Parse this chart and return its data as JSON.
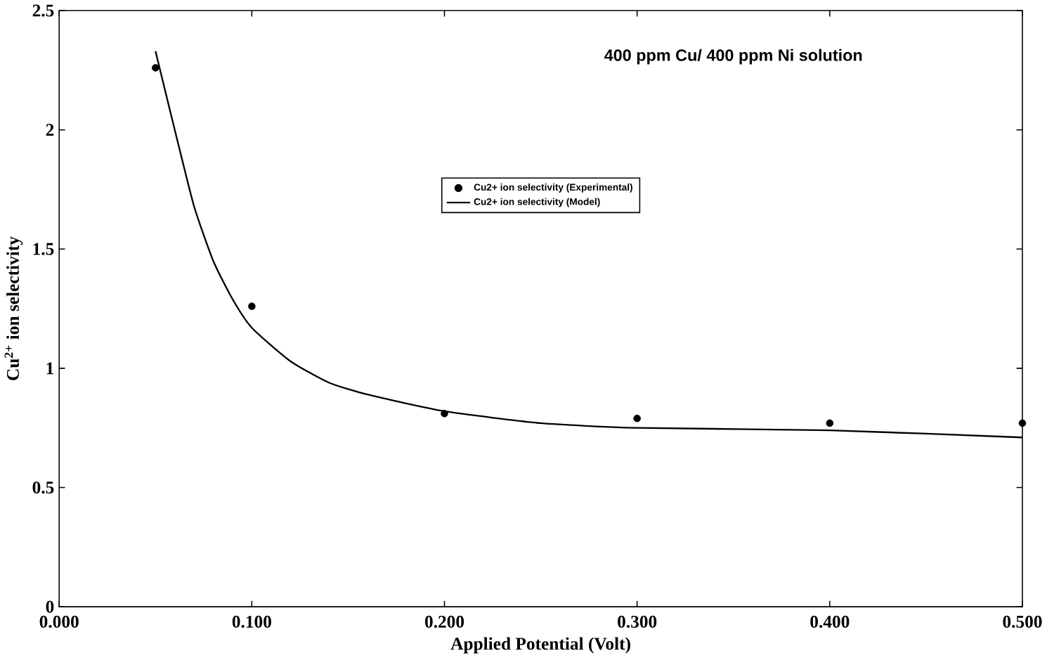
{
  "chart_data": {
    "type": "scatter",
    "title": "400 ppm Cu/ 400 ppm Ni solution",
    "xlabel": "Applied Potential (Volt)",
    "ylabel": "Cu$^{2+}$ ion selectivity",
    "series": [
      {
        "name": "Cu2+ ion selectivity (Experimental)",
        "color": "#000000",
        "marker": "circle",
        "x": [
          0.05,
          0.1,
          0.2,
          0.3,
          0.4,
          0.5
        ],
        "values": [
          2.26,
          1.26,
          0.81,
          0.79,
          0.77,
          0.77
        ]
      },
      {
        "name": "Cu2+ ion selectivity (Model)",
        "type": "line",
        "color": "#000000",
        "marker": "none",
        "line_style": "solid",
        "x": [
          0.05,
          0.06,
          0.07,
          0.08,
          0.09,
          0.1,
          0.12,
          0.14,
          0.16,
          0.2,
          0.25,
          0.3,
          0.4,
          0.5
        ],
        "values": [
          2.33,
          2.0,
          1.68,
          1.45,
          1.29,
          1.17,
          1.03,
          0.94,
          0.89,
          0.82,
          0.77,
          0.75,
          0.74,
          0.71
        ]
      }
    ],
    "xlim": [
      0,
      0.5
    ],
    "ylim": [
      0,
      2.5
    ],
    "xticks": [
      {
        "value": 0,
        "label": "0.000"
      },
      {
        "value": 0.1,
        "label": "0.100"
      },
      {
        "value": 0.2,
        "label": "0.200"
      },
      {
        "value": 0.3,
        "label": "0.300"
      },
      {
        "value": 0.4,
        "label": "0.400"
      },
      {
        "value": 0.5,
        "label": "0.500"
      }
    ],
    "yticks": [
      0,
      0.5,
      1,
      1.5,
      2,
      2.5
    ],
    "grid": false,
    "legend": "top"
  }
}
